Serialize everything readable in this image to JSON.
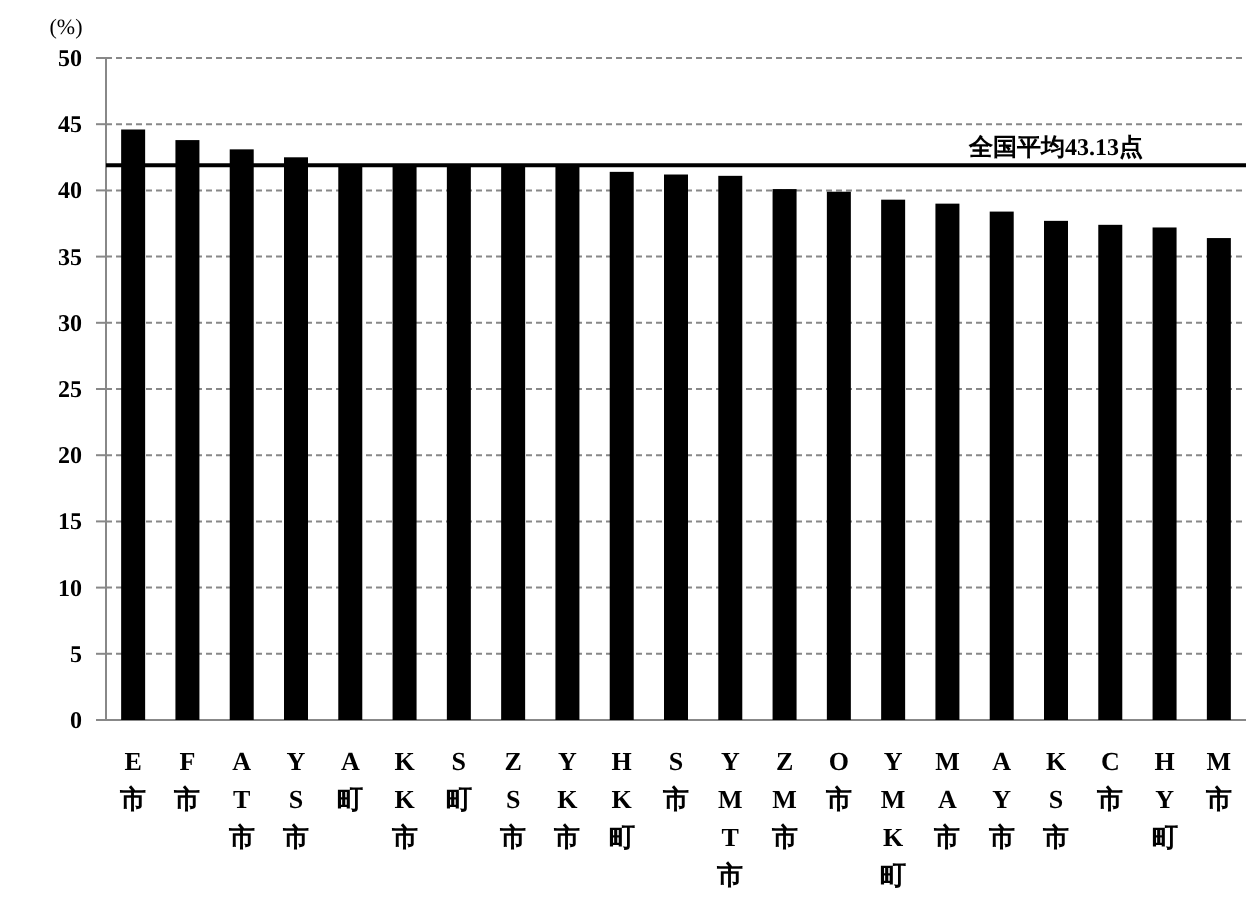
{
  "chart_data": {
    "type": "bar",
    "ylabel": "(%)",
    "categories": [
      "E市",
      "F市",
      "AT市",
      "YS市",
      "A町",
      "KK市",
      "S町",
      "ZS市",
      "YK市",
      "HK町",
      "S市",
      "YMT市",
      "ZM市",
      "O市",
      "YMK町",
      "MA市",
      "AY市",
      "KS市",
      "C市",
      "HY町",
      "M市"
    ],
    "values": [
      44.6,
      43.8,
      43.1,
      42.5,
      41.9,
      41.9,
      41.9,
      41.9,
      41.9,
      41.4,
      41.2,
      41.1,
      40.1,
      39.9,
      39.3,
      39.0,
      38.4,
      37.7,
      37.4,
      37.2,
      36.4
    ],
    "color": "#000000",
    "ylim": [
      0,
      50
    ],
    "yticks": [
      0,
      5,
      10,
      15,
      20,
      25,
      30,
      35,
      40,
      45,
      50
    ],
    "grid": "y",
    "ref_lines": [
      {
        "axis": "y",
        "value": 41.9,
        "label": "全国平均43.13点",
        "color": "#000000"
      }
    ]
  }
}
